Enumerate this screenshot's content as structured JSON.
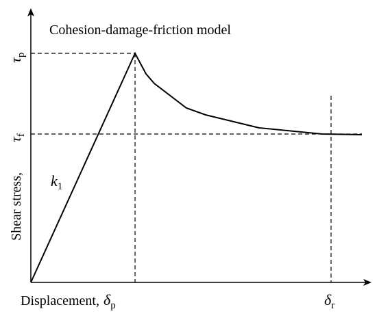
{
  "title": "Cohesion-damage-friction model",
  "y_axis_label": "Shear stress,",
  "x_axis_label": "Displacement,",
  "symbols": {
    "tau_p": {
      "symbol": "τ",
      "subscript": "p"
    },
    "tau_f": {
      "symbol": "τ",
      "subscript": "f"
    },
    "k_1": {
      "symbol": "k",
      "subscript": "1"
    },
    "delta_p": {
      "symbol": "δ",
      "subscript": "p"
    },
    "delta_r": {
      "symbol": "δ",
      "subscript": "r"
    }
  }
}
